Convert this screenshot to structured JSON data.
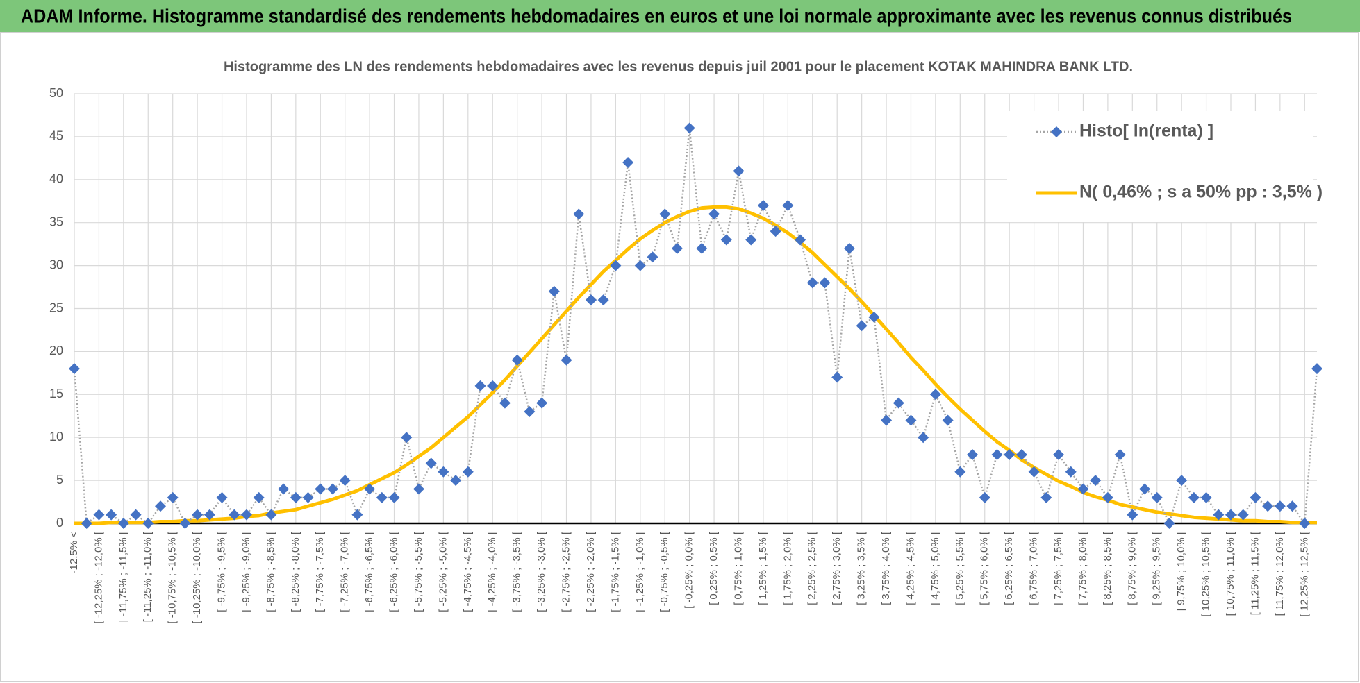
{
  "chart_data": {
    "type": "line",
    "title": "ADAM Informe. Histogramme standardisé des rendements hebdomadaires en euros et une loi normale approximante avec les revenus connus distribués",
    "subtitle": "Histogramme  des LN des rendements  hebdomadaires avec les revenus depuis juil 2001 pour le placement KOTAK MAHINDRA  BANK LTD.",
    "categories": [
      "-12,5% <",
      null,
      "[ -12,25% ; -12,0% [",
      null,
      "[ -11,75% ; -11,5% [",
      null,
      "[ -11,25% ; -11,0% [",
      null,
      "[ -10,75% ; -10,5% [",
      null,
      "[ -10,25% ; -10,0% [",
      null,
      "[ -9,75% ; -9,5% [",
      null,
      "[ -9,25% ; -9,0% [",
      null,
      "[ -8,75% ; -8,5% [",
      null,
      "[ -8,25% ; -8,0% [",
      null,
      "[ -7,75% ; -7,5% [",
      null,
      "[ -7,25% ; -7,0% [",
      null,
      "[ -6,75% ; -6,5% [",
      null,
      "[ -6,25% ; -6,0% [",
      null,
      "[ -5,75% ; -5,5% [",
      null,
      "[ -5,25% ; -5,0% [",
      null,
      "[ -4,75% ; -4,5% [",
      null,
      "[ -4,25% ; -4,0% [",
      null,
      "[ -3,75% ; -3,5% [",
      null,
      "[ -3,25% ; -3,0% [",
      null,
      "[ -2,75% ; -2,5% [",
      null,
      "[ -2,25% ; -2,0% [",
      null,
      "[ -1,75% ; -1,5% [",
      null,
      "[ -1,25% ; -1,0% [",
      null,
      "[ -0,75% ; -0,5% [",
      null,
      "[ -0,25% ; 0,0% [",
      null,
      "[ 0,25% ; 0,5% [",
      null,
      "[ 0,75% ; 1,0% [",
      null,
      "[ 1,25% ; 1,5% [",
      null,
      "[ 1,75% ; 2,0% [",
      null,
      "[ 2,25% ; 2,5% [",
      null,
      "[ 2,75% ; 3,0% [",
      null,
      "[ 3,25% ; 3,5% [",
      null,
      "[ 3,75% ; 4,0% [",
      null,
      "[ 4,25% ; 4,5% [",
      null,
      "[ 4,75% ; 5,0% [",
      null,
      "[ 5,25% ; 5,5% [",
      null,
      "[ 5,75% ; 6,0% [",
      null,
      "[ 6,25% ; 6,5% [",
      null,
      "[ 6,75% ; 7,0% [",
      null,
      "[ 7,25% ; 7,5% [",
      null,
      "[ 7,75% ; 8,0% [",
      null,
      "[ 8,25% ; 8,5% [",
      null,
      "[ 8,75% ; 9,0% [",
      null,
      "[ 9,25% ; 9,5% [",
      null,
      "[ 9,75% ; 10,0% [",
      null,
      "[ 10,25% ; 10,5% [",
      null,
      "[ 10,75% ; 11,0% [",
      null,
      "[ 11,25% ; 11,5% [",
      null,
      "[ 11,75% ; 12,0% [",
      null,
      "[ 12,25% ; 12,5% [",
      null
    ],
    "series": [
      {
        "name": "Histo[ ln(renta) ]",
        "color": "#4472c4",
        "line_color": "#a5a5a5",
        "marker": "diamond",
        "values": [
          18,
          0,
          1,
          1,
          0,
          1,
          0,
          2,
          3,
          0,
          1,
          1,
          3,
          1,
          1,
          3,
          1,
          4,
          3,
          3,
          4,
          4,
          5,
          1,
          4,
          3,
          3,
          10,
          4,
          7,
          6,
          5,
          6,
          16,
          16,
          14,
          19,
          13,
          14,
          27,
          19,
          36,
          26,
          26,
          30,
          42,
          30,
          31,
          36,
          32,
          46,
          32,
          36,
          33,
          41,
          33,
          37,
          34,
          37,
          33,
          28,
          28,
          17,
          32,
          23,
          24,
          12,
          14,
          12,
          10,
          15,
          12,
          6,
          8,
          3,
          8,
          8,
          8,
          6,
          3,
          8,
          6,
          4,
          5,
          3,
          8,
          1,
          4,
          3,
          0,
          5,
          3,
          3,
          1,
          1,
          1,
          3,
          2,
          2,
          2,
          0,
          18
        ]
      },
      {
        "name": "N( 0,46% ; s a 50% pp : 3,5% )",
        "color": "#ffc000",
        "marker": "none",
        "values": [
          0.0,
          0.0,
          0.0,
          0.1,
          0.1,
          0.1,
          0.1,
          0.2,
          0.2,
          0.3,
          0.3,
          0.4,
          0.5,
          0.6,
          0.8,
          0.9,
          1.2,
          1.4,
          1.6,
          2.0,
          2.4,
          2.8,
          3.3,
          3.8,
          4.5,
          5.2,
          5.9,
          6.8,
          7.8,
          8.8,
          10.0,
          11.2,
          12.4,
          13.8,
          15.2,
          16.7,
          18.3,
          19.9,
          21.5,
          23.1,
          24.7,
          26.3,
          27.8,
          29.3,
          30.6,
          31.9,
          33.1,
          34.1,
          35.0,
          35.7,
          36.3,
          36.7,
          36.8,
          36.8,
          36.6,
          36.1,
          35.5,
          34.7,
          33.8,
          32.7,
          31.5,
          30.1,
          28.7,
          27.3,
          25.8,
          24.2,
          22.6,
          21.0,
          19.3,
          17.8,
          16.2,
          14.7,
          13.3,
          12.0,
          10.7,
          9.5,
          8.5,
          7.4,
          6.5,
          5.7,
          4.9,
          4.3,
          3.6,
          3.1,
          2.7,
          2.2,
          1.9,
          1.6,
          1.3,
          1.1,
          0.9,
          0.7,
          0.6,
          0.5,
          0.4,
          0.3,
          0.3,
          0.2,
          0.2,
          0.1,
          0.1,
          0.1
        ]
      }
    ],
    "ylim": [
      0,
      50
    ],
    "yticks": [
      0,
      5,
      10,
      15,
      20,
      25,
      30,
      35,
      40,
      45,
      50
    ],
    "grid": true,
    "legend": "top-right"
  }
}
